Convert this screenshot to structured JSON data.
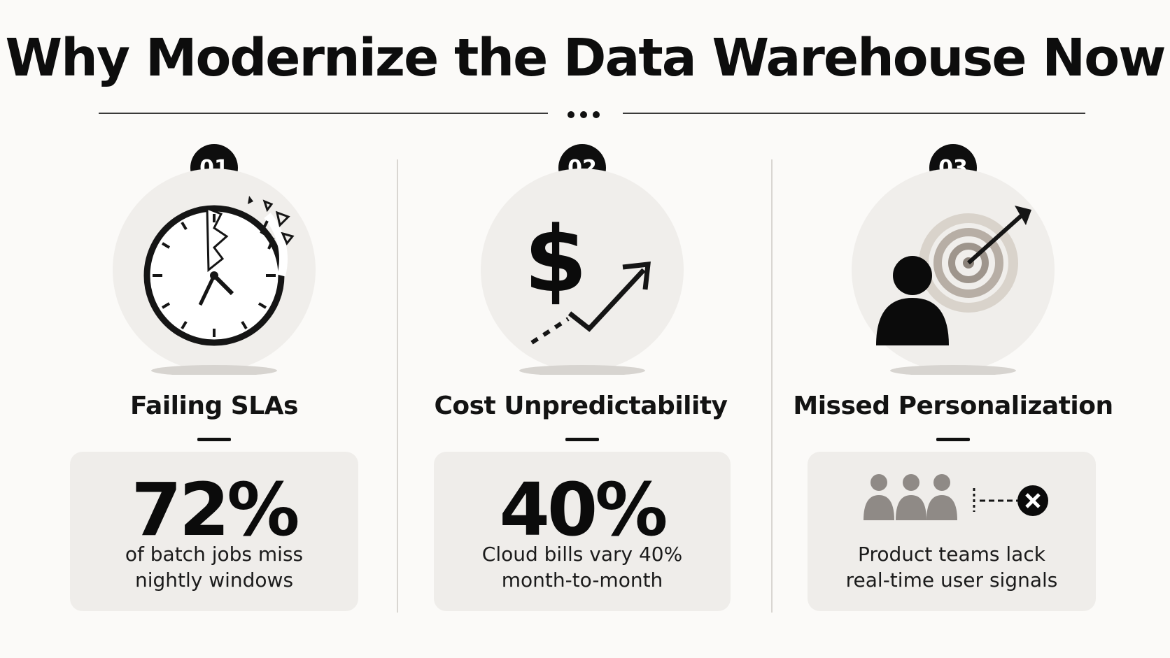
{
  "title": "Why Modernize the Data Warehouse Now",
  "items": [
    {
      "number": "01",
      "icon": "broken-clock-icon",
      "heading": "Failing SLAs",
      "stat": "72%",
      "description_line1": "of batch jobs miss",
      "description_line2": "nightly windows"
    },
    {
      "number": "02",
      "icon": "dollar-trend-up-icon",
      "heading": "Cost Unpredictability",
      "stat": "40%",
      "description_line1": "Cloud bills vary 40%",
      "description_line2": "month-to-month"
    },
    {
      "number": "03",
      "icon": "person-target-icon",
      "heading": "Missed Personalization",
      "secondary_icons": [
        "users-group-icon",
        "disconnected-x-icon"
      ],
      "description_line1": "Product teams lack",
      "description_line2": "real-time user signals"
    }
  ],
  "colors": {
    "background": "#fbfaf8",
    "accent": "#0e0e0e",
    "card": "#efedea",
    "icon_circle": "#f0eeeb",
    "muted_icon": "#8f8a86"
  }
}
